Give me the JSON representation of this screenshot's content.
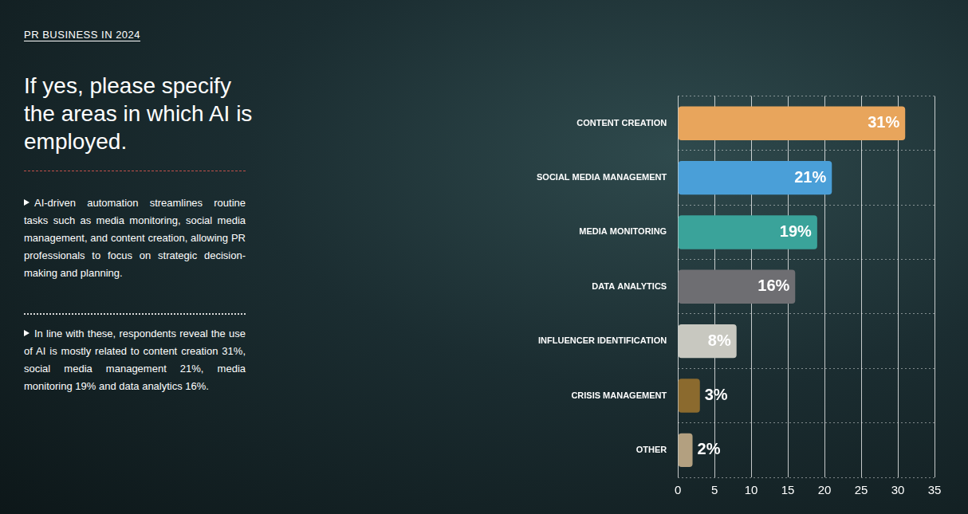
{
  "header": "PR BUSINESS IN 2024",
  "title": "If yes, please specify the areas in which AI is employed.",
  "bullets": [
    "AI-driven automation streamlines routine tasks such as media monitoring, social media management, and content creation, allowing PR professionals to focus on strategic decision-making and planning.",
    "In line with these, respondents reveal the use of AI is mostly related to content creation 31%, social media management 21%, media monitoring 19% and data analytics 16%."
  ],
  "chart_data": {
    "type": "bar",
    "orientation": "horizontal",
    "categories": [
      "CONTENT CREATION",
      "SOCIAL MEDIA MANAGEMENT",
      "MEDIA MONITORING",
      "DATA ANALYTICS",
      "INFLUENCER IDENTIFICATION",
      "CRISIS MANAGEMENT",
      "OTHER"
    ],
    "values": [
      31,
      21,
      19,
      16,
      8,
      3,
      2
    ],
    "value_labels": [
      "31%",
      "21%",
      "19%",
      "16%",
      "8%",
      "3%",
      "2%"
    ],
    "colors": [
      "#e8a55c",
      "#4a9fd8",
      "#3aa39a",
      "#6e6e72",
      "#c8c8c0",
      "#8b6a2e",
      "#b3a080"
    ],
    "data_labels": true,
    "xlim": [
      0,
      35
    ],
    "xticks": [
      0,
      5,
      10,
      15,
      20,
      25,
      30,
      35
    ],
    "grid": true
  }
}
